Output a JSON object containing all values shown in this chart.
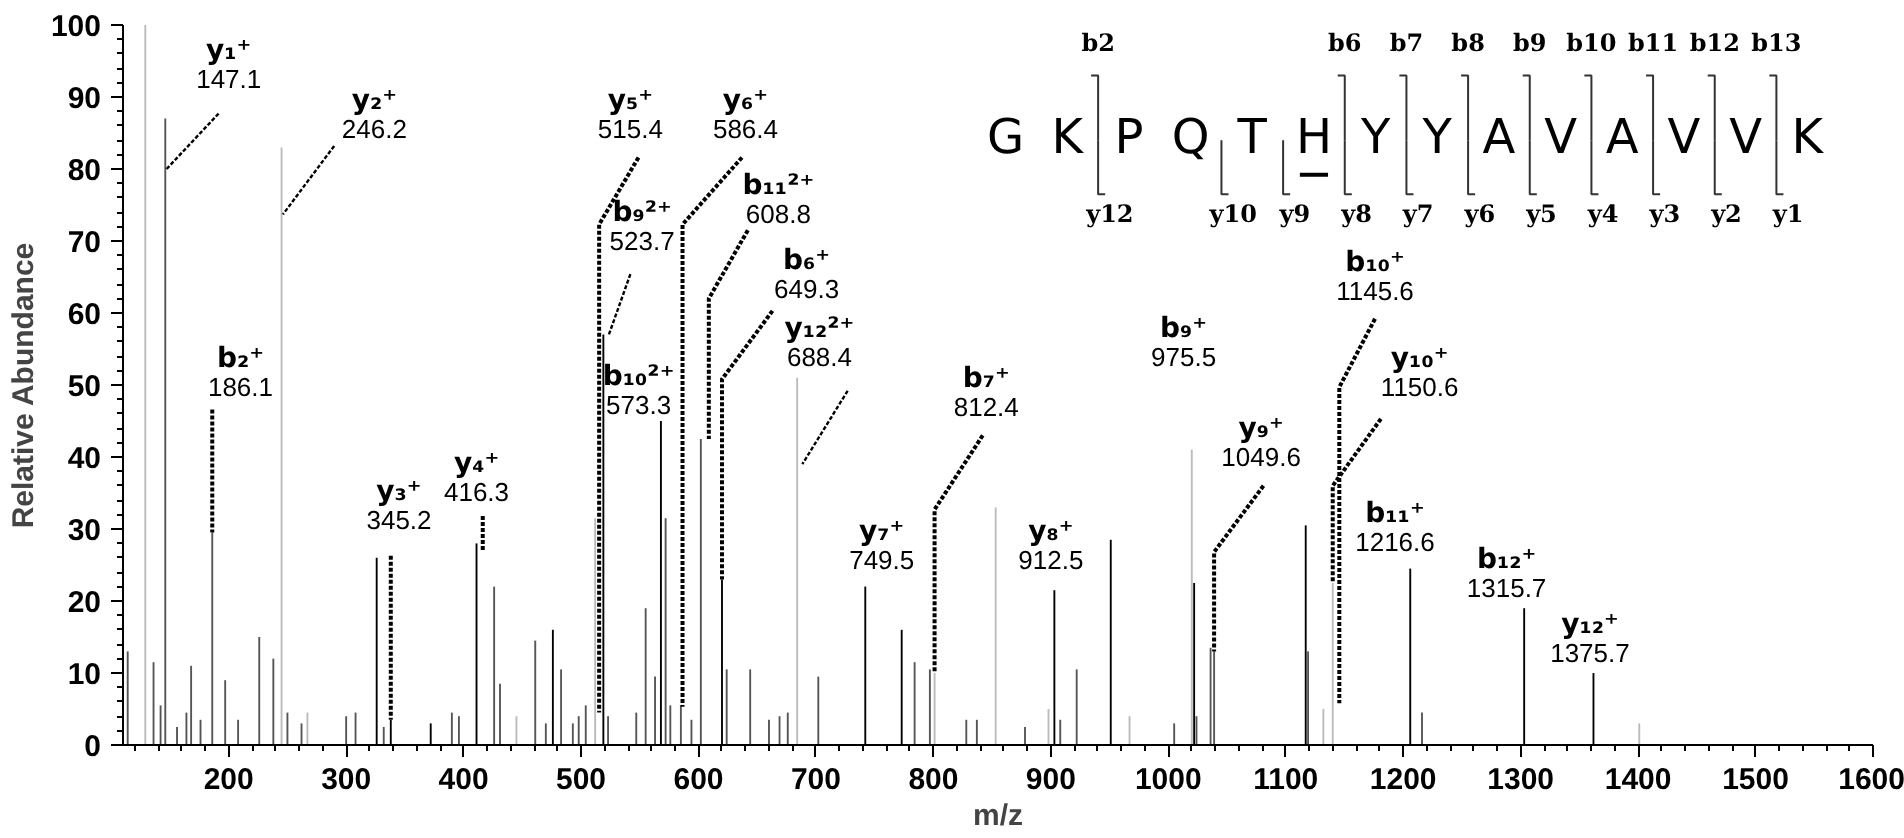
{
  "chart_data": {
    "type": "bar",
    "xlabel": "m/z",
    "ylabel": "Relative Abundance",
    "xlim": [
      110,
      1600
    ],
    "ylim": [
      0,
      100
    ],
    "xticks": [
      200,
      300,
      400,
      500,
      600,
      700,
      800,
      900,
      1000,
      1100,
      1200,
      1300,
      1400,
      1500,
      1600
    ],
    "yticks": [
      0,
      10,
      20,
      30,
      40,
      50,
      60,
      70,
      80,
      90,
      100
    ],
    "grid": false,
    "x": [
      114,
      129,
      136,
      142,
      146,
      156,
      164,
      168,
      176,
      186,
      197,
      208,
      226,
      238,
      245,
      250,
      262,
      267,
      300,
      308,
      326,
      332,
      338,
      372,
      390,
      396,
      411,
      426,
      431,
      445,
      461,
      470,
      476,
      483,
      493,
      498,
      504,
      512,
      519,
      523,
      547,
      555,
      563,
      568,
      572,
      576,
      585,
      594,
      602,
      620,
      624,
      644,
      660,
      669,
      676,
      684,
      702,
      742,
      773,
      784,
      797,
      801,
      828,
      837,
      853,
      878,
      898,
      903,
      908,
      922,
      951,
      967,
      1005,
      1020,
      1022,
      1024,
      1036,
      1039,
      1117,
      1119,
      1132,
      1140,
      1206,
      1216,
      1303,
      1362,
      1401
    ],
    "values": [
      13,
      100,
      11.5,
      5.5,
      87,
      2.5,
      4.5,
      11,
      3.5,
      29.5,
      9,
      3.5,
      15,
      12,
      83,
      4.5,
      3,
      4.5,
      4,
      4.5,
      26,
      2.5,
      3.5,
      3,
      4.5,
      4,
      28,
      22,
      8.5,
      4,
      14.5,
      3,
      16,
      10.5,
      3,
      4,
      5.5,
      31.5,
      57,
      4,
      4.5,
      19,
      9.5,
      45,
      31.5,
      5.5,
      5.5,
      3.5,
      42.5,
      23,
      10.5,
      10.5,
      3.5,
      4,
      4.5,
      51,
      9.5,
      22,
      16,
      11.5,
      10.5,
      10,
      3.5,
      3.5,
      33,
      2.5,
      5,
      21.5,
      3.5,
      10.5,
      28.5,
      4,
      3,
      41,
      22.5,
      4,
      13.5,
      13,
      30.5,
      13,
      5,
      22.5,
      24.5,
      4.5,
      19,
      10,
      3
    ],
    "colors": [
      "#555555",
      "#bbbbbb",
      "#555555",
      "#555555",
      "#555555",
      "#555555",
      "#555555",
      "#555555",
      "#555555",
      "#555555",
      "#555555",
      "#555555",
      "#555555",
      "#555555",
      "#bbbbbb",
      "#555555",
      "#555555",
      "#bbbbbb",
      "#555555",
      "#555555",
      "#000000",
      "#555555",
      "#000000",
      "#000000",
      "#555555",
      "#555555",
      "#000000",
      "#555555",
      "#555555",
      "#bbbbbb",
      "#555555",
      "#555555",
      "#000000",
      "#555555",
      "#555555",
      "#555555",
      "#555555",
      "#bbbbbb",
      "#000000",
      "#555555",
      "#555555",
      "#555555",
      "#555555",
      "#000000",
      "#555555",
      "#555555",
      "#555555",
      "#555555",
      "#555555",
      "#000000",
      "#555555",
      "#555555",
      "#555555",
      "#555555",
      "#555555",
      "#bbbbbb",
      "#555555",
      "#000000",
      "#000000",
      "#555555",
      "#555555",
      "#bbbbbb",
      "#555555",
      "#555555",
      "#bbbbbb",
      "#555555",
      "#bbbbbb",
      "#000000",
      "#555555",
      "#555555",
      "#000000",
      "#bbbbbb",
      "#555555",
      "#bbbbbb",
      "#000000",
      "#555555",
      "#555555",
      "#555555",
      "#000000",
      "#555555",
      "#bbbbbb",
      "#bbbbbb",
      "#000000",
      "#555555",
      "#000000",
      "#000000",
      "#bbbbbb"
    ],
    "annotations": [
      {
        "text": "y₁⁺\n147.1",
        "x": 147.1,
        "y": 80
      },
      {
        "text": "y₂⁺\n246.2",
        "x": 246.2,
        "y": 73.7
      },
      {
        "text": "b₂⁺\n186.1",
        "x": 186,
        "y": 29.5
      },
      {
        "text": "y₃⁺\n345.2",
        "x": 338,
        "y": 3.5
      },
      {
        "text": "y₄⁺\n416.3",
        "x": 416.3,
        "y": 27
      },
      {
        "text": "y₅⁺\n515.4",
        "x": 515.4,
        "y": 4.5
      },
      {
        "text": "b₉²⁺\n523.7",
        "x": 523.7,
        "y": 57
      },
      {
        "text": "y₆⁺\n586.4",
        "x": 586.4,
        "y": 5.3
      },
      {
        "text": "b₁₁²⁺\n608.8",
        "x": 608.8,
        "y": 42.5
      },
      {
        "text": "b₆⁺\n649.3",
        "x": 620,
        "y": 23
      },
      {
        "text": "b₁₀²⁺\n573.3",
        "x": 573.3,
        "y": 45
      },
      {
        "text": "y₁₂²⁺\n688.4",
        "x": 688.4,
        "y": 39
      },
      {
        "text": "b₇⁺\n812.4",
        "x": 801,
        "y": 10
      },
      {
        "text": "y₇⁺\n749.5",
        "x": 749.5,
        "y": 21.5
      },
      {
        "text": "y₈⁺\n912.5",
        "x": 903,
        "y": 21.5
      },
      {
        "text": "b₉⁺\n975.5",
        "x": 1020,
        "y": 41
      },
      {
        "text": "y₉⁺\n1049.6",
        "x": 1039,
        "y": 13
      },
      {
        "text": "b₁₀⁺\n1145.6",
        "x": 1145.6,
        "y": 5.8
      },
      {
        "text": "y₁₀⁺\n1150.6",
        "x": 1140,
        "y": 22.5
      },
      {
        "text": "b₁₁⁺\n1216.6",
        "x": 1206,
        "y": 24.5
      },
      {
        "text": "b₁₂⁺\n1315.7",
        "x": 1303,
        "y": 19
      },
      {
        "text": "y₁₂⁺\n1375.7",
        "x": 1362,
        "y": 10
      },
      "G",
      "K",
      "P",
      "Q",
      "T",
      "H",
      "Y",
      "Y",
      "A",
      "V",
      "A",
      "V",
      "V",
      "K",
      "b2",
      "b6",
      "b7",
      "b8",
      "b9",
      "b10",
      "b11",
      "b12",
      "b13",
      "y12",
      "y10",
      "y9",
      "y8",
      "y7",
      "y6",
      "y5",
      "y4",
      "y3",
      "y2",
      "y1"
    ]
  }
}
